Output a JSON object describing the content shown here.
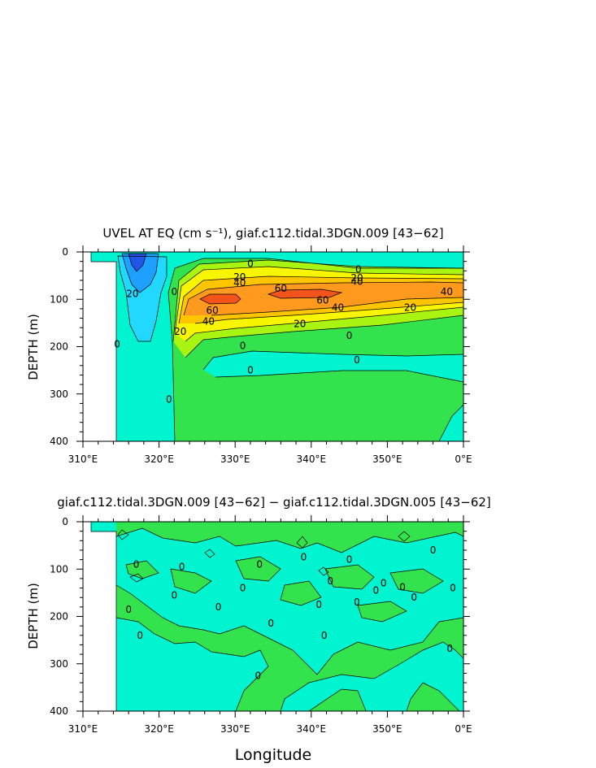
{
  "chart_data": [
    {
      "type": "contour",
      "title": "UVEL AT EQ (cm s⁻¹), giaf.c112.tidal.3DGN.009 [43−62]",
      "ylabel": "DEPTH (m)",
      "xlabel": "",
      "x_ticks": [
        "310°E",
        "320°E",
        "330°E",
        "340°E",
        "350°E",
        "0°E"
      ],
      "y_ticks": [
        "0",
        "100",
        "200",
        "300",
        "400"
      ],
      "xlim": [
        310,
        360
      ],
      "ylim": [
        400,
        0
      ],
      "contour_labels": [
        {
          "text": "0",
          "x": 332,
          "y": 25
        },
        {
          "text": "20",
          "x": 330.6,
          "y": 53
        },
        {
          "text": "40",
          "x": 330.6,
          "y": 65
        },
        {
          "text": "60",
          "x": 336,
          "y": 77
        },
        {
          "text": "60",
          "x": 341.5,
          "y": 102
        },
        {
          "text": "40",
          "x": 343.5,
          "y": 118
        },
        {
          "text": "20",
          "x": 353,
          "y": 118
        },
        {
          "text": "40",
          "x": 357.8,
          "y": 84
        },
        {
          "text": "60",
          "x": 327,
          "y": 124
        },
        {
          "text": "40",
          "x": 326.5,
          "y": 147
        },
        {
          "text": "20",
          "x": 338.5,
          "y": 152
        },
        {
          "text": "20",
          "x": 322.8,
          "y": 168
        },
        {
          "text": "0",
          "x": 345,
          "y": 177
        },
        {
          "text": "0",
          "x": 331,
          "y": 198
        },
        {
          "text": "0",
          "x": 332,
          "y": 250
        },
        {
          "text": "0",
          "x": 346,
          "y": 228
        },
        {
          "text": "0",
          "x": 321.3,
          "y": 312
        },
        {
          "text": "0",
          "x": 314.5,
          "y": 195
        },
        {
          "text": "20",
          "x": 316.5,
          "y": 88
        },
        {
          "text": "20",
          "x": 346,
          "y": 55
        },
        {
          "text": "40",
          "x": 346,
          "y": 63
        },
        {
          "text": "0",
          "x": 346.2,
          "y": 37
        },
        {
          "text": "0",
          "x": 322,
          "y": 84
        }
      ]
    },
    {
      "type": "contour",
      "title": "giaf.c112.tidal.3DGN.009 [43−62] − giaf.c112.tidal.3DGN.005 [43−62]",
      "ylabel": "DEPTH (m)",
      "xlabel": "Longitude",
      "x_ticks": [
        "310°E",
        "320°E",
        "330°E",
        "340°E",
        "350°E",
        "0°E"
      ],
      "y_ticks": [
        "0",
        "100",
        "200",
        "300",
        "400"
      ],
      "xlim": [
        310,
        360
      ],
      "ylim": [
        400,
        0
      ],
      "contour_labels": [
        {
          "text": "0",
          "x": 317,
          "y": 90
        },
        {
          "text": "0",
          "x": 323,
          "y": 95
        },
        {
          "text": "0",
          "x": 322,
          "y": 155
        },
        {
          "text": "0",
          "x": 316,
          "y": 185
        },
        {
          "text": "0",
          "x": 317.5,
          "y": 240
        },
        {
          "text": "0",
          "x": 327.8,
          "y": 180
        },
        {
          "text": "0",
          "x": 331,
          "y": 140
        },
        {
          "text": "0",
          "x": 333.2,
          "y": 90
        },
        {
          "text": "0",
          "x": 334.7,
          "y": 215
        },
        {
          "text": "0",
          "x": 339,
          "y": 75
        },
        {
          "text": "0",
          "x": 341,
          "y": 175
        },
        {
          "text": "0",
          "x": 341.7,
          "y": 240
        },
        {
          "text": "0",
          "x": 342.5,
          "y": 125
        },
        {
          "text": "0",
          "x": 345,
          "y": 80
        },
        {
          "text": "0",
          "x": 346,
          "y": 170
        },
        {
          "text": "0",
          "x": 348.5,
          "y": 145
        },
        {
          "text": "0",
          "x": 349.5,
          "y": 130
        },
        {
          "text": "0",
          "x": 352,
          "y": 138
        },
        {
          "text": "0",
          "x": 353.5,
          "y": 160
        },
        {
          "text": "0",
          "x": 356,
          "y": 60
        },
        {
          "text": "0",
          "x": 358.6,
          "y": 140
        },
        {
          "text": "0",
          "x": 358.2,
          "y": 268
        },
        {
          "text": "0",
          "x": 333,
          "y": 325
        }
      ]
    }
  ]
}
